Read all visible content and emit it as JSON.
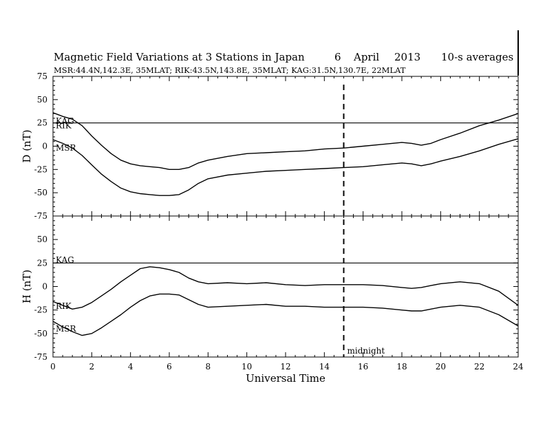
{
  "chart_data": {
    "type": "line",
    "title": {
      "main": "Magnetic Field Variations at 3 Stations in Japan",
      "day": "6",
      "month": "April",
      "year": "2013",
      "note": "10-s averages"
    },
    "subtitle": "MSR:44.4N,142.3E, 35MLAT;  RIK:43.5N,143.8E, 35MLAT;  KAG:31.5N,130.7E, 22MLAT",
    "xlabel": "Universal Time",
    "xlim": [
      0,
      24
    ],
    "x_ticks": [
      "0",
      "2",
      "4",
      "6",
      "8",
      "10",
      "12",
      "14",
      "16",
      "18",
      "20",
      "22",
      "24"
    ],
    "y_ticks": [
      "75",
      "50",
      "25",
      "0",
      "-25",
      "-50",
      "-75"
    ],
    "marker": {
      "x": 15,
      "label": "midnight",
      "style": "dashed"
    },
    "panels": [
      {
        "id": "D",
        "ylabel": "D (nT)",
        "ylim": [
          -75,
          75
        ],
        "series": [
          {
            "name": "KAG",
            "x": [
              0,
              1,
              2,
              3,
              4,
              5,
              6,
              7,
              8,
              9,
              10,
              11,
              12,
              13,
              14,
              15,
              16,
              17,
              18,
              19,
              20,
              21,
              22,
              23,
              24
            ],
            "values": [
              25,
              25,
              25,
              25,
              25,
              25,
              25,
              25,
              25,
              25,
              25,
              25,
              25,
              25,
              25,
              25,
              25,
              25,
              25,
              25,
              25,
              25,
              25,
              25,
              25
            ]
          },
          {
            "name": "RIK",
            "x": [
              0,
              0.5,
              1,
              1.5,
              2,
              2.5,
              3,
              3.5,
              4,
              4.5,
              5,
              5.5,
              6,
              6.5,
              7,
              7.5,
              8,
              9,
              10,
              11,
              12,
              13,
              14,
              15,
              16,
              17,
              18,
              18.5,
              19,
              19.5,
              20,
              21,
              22,
              23,
              24
            ],
            "values": [
              36,
              32,
              29,
              22,
              11,
              1,
              -8,
              -15,
              -19,
              -21,
              -22,
              -23,
              -25,
              -25,
              -23,
              -18,
              -15,
              -11,
              -8,
              -7,
              -6,
              -5,
              -3,
              -2,
              0,
              2,
              4,
              3,
              1,
              3,
              7,
              14,
              22,
              28,
              35
            ]
          },
          {
            "name": "MSR",
            "x": [
              0,
              0.5,
              1,
              1.5,
              2,
              2.5,
              3,
              3.5,
              4,
              4.5,
              5,
              5.5,
              6,
              6.5,
              7,
              7.5,
              8,
              9,
              10,
              11,
              12,
              13,
              14,
              15,
              16,
              17,
              18,
              18.5,
              19,
              19.5,
              20,
              21,
              22,
              23,
              24
            ],
            "values": [
              7,
              3,
              -2,
              -10,
              -20,
              -30,
              -38,
              -45,
              -49,
              -51,
              -52,
              -53,
              -53,
              -52,
              -47,
              -40,
              -35,
              -31,
              -29,
              -27,
              -26,
              -25,
              -24,
              -23,
              -22,
              -20,
              -18,
              -19,
              -21,
              -19,
              -16,
              -11,
              -5,
              2,
              8
            ]
          }
        ],
        "label_positions": {
          "KAG": 27,
          "RIK": 22,
          "MSR": -2
        }
      },
      {
        "id": "H",
        "ylabel": "H (nT)",
        "ylim": [
          -75,
          75
        ],
        "series": [
          {
            "name": "KAG",
            "x": [
              0,
              1,
              2,
              3,
              4,
              5,
              6,
              7,
              8,
              9,
              10,
              11,
              12,
              13,
              14,
              15,
              16,
              17,
              18,
              19,
              20,
              21,
              22,
              23,
              24
            ],
            "values": [
              25,
              25,
              25,
              25,
              25,
              25,
              25,
              25,
              25,
              25,
              25,
              25,
              25,
              25,
              25,
              25,
              25,
              25,
              25,
              25,
              25,
              25,
              25,
              25,
              25
            ]
          },
          {
            "name": "RIK",
            "x": [
              0,
              0.5,
              1,
              1.5,
              2,
              2.5,
              3,
              3.5,
              4,
              4.5,
              5,
              5.5,
              6,
              6.5,
              7,
              7.5,
              8,
              9,
              10,
              11,
              12,
              13,
              14,
              15,
              16,
              17,
              18,
              18.5,
              19,
              19.5,
              20,
              21,
              22,
              23,
              24
            ],
            "values": [
              -16,
              -20,
              -24,
              -22,
              -17,
              -10,
              -3,
              5,
              12,
              19,
              21,
              20,
              18,
              15,
              9,
              5,
              3,
              4,
              3,
              4,
              2,
              1,
              2,
              2,
              2,
              1,
              -1,
              -2,
              -1,
              1,
              3,
              5,
              3,
              -5,
              -20
            ]
          },
          {
            "name": "MSR",
            "x": [
              0,
              0.5,
              1,
              1.5,
              2,
              2.5,
              3,
              3.5,
              4,
              4.5,
              5,
              5.5,
              6,
              6.5,
              7,
              7.5,
              8,
              9,
              10,
              11,
              12,
              13,
              14,
              15,
              16,
              17,
              18,
              18.5,
              19,
              19.5,
              20,
              21,
              22,
              23,
              24
            ],
            "values": [
              -37,
              -43,
              -48,
              -52,
              -50,
              -44,
              -37,
              -30,
              -22,
              -15,
              -10,
              -8,
              -8,
              -9,
              -14,
              -19,
              -22,
              -21,
              -20,
              -19,
              -21,
              -21,
              -22,
              -22,
              -22,
              -23,
              -25,
              -26,
              -26,
              -24,
              -22,
              -20,
              -22,
              -30,
              -42
            ]
          }
        ],
        "label_positions": {
          "KAG": 28,
          "RIK": -21,
          "MSR": -45
        }
      }
    ]
  }
}
